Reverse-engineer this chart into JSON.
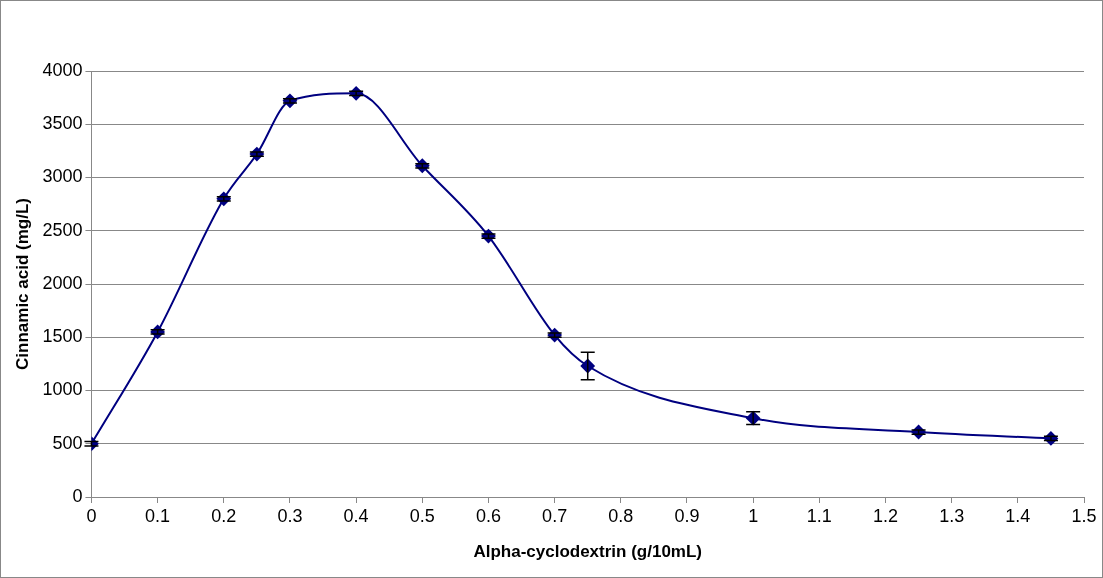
{
  "chart_data": {
    "type": "line",
    "xlabel": "Alpha-cyclodextrin (g/10mL)",
    "ylabel": "Cinnamic acid (mg/L)",
    "x": [
      0,
      0.1,
      0.2,
      0.25,
      0.3,
      0.4,
      0.5,
      0.6,
      0.7,
      0.75,
      1,
      1.25,
      1.45
    ],
    "series": [
      {
        "color": "#000080",
        "values": [
          500,
          1550,
          2800,
          3220,
          3720,
          3790,
          3110,
          2450,
          1520,
          1230,
          740,
          610,
          550
        ],
        "errors": [
          20,
          20,
          20,
          20,
          20,
          20,
          20,
          20,
          20,
          130,
          60,
          20,
          20
        ]
      }
    ],
    "xlim": [
      0,
      1.5
    ],
    "xticks": [
      0,
      0.1,
      0.2,
      0.3,
      0.4,
      0.5,
      0.6,
      0.7,
      0.8,
      0.9,
      1,
      1.1,
      1.2,
      1.3,
      1.4,
      1.5
    ],
    "ylim": [
      0,
      4000
    ],
    "yticks": [
      0,
      500,
      1000,
      1500,
      2000,
      2500,
      3000,
      3500,
      4000
    ],
    "grid": "y",
    "legend": false,
    "marker": "diamond",
    "line_style": "solid"
  }
}
